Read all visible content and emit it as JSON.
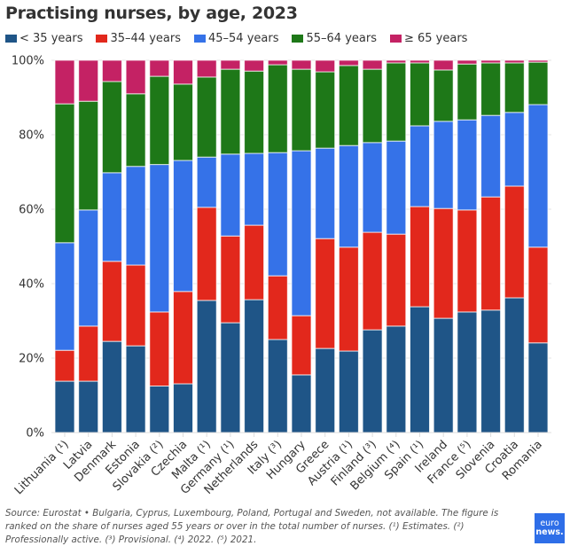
{
  "chart_data": {
    "type": "bar",
    "stacked": true,
    "percent_stacked": true,
    "title": "Practising nurses, by age, 2023",
    "xlabel": "",
    "ylabel": "",
    "ylim": [
      0,
      100
    ],
    "y_ticks": [
      0,
      20,
      40,
      60,
      80,
      100
    ],
    "y_tick_labels": [
      "0%",
      "20%",
      "40%",
      "60%",
      "80%",
      "100%"
    ],
    "grid": true,
    "legend_position": "top-left",
    "categories": [
      "Lithuania (¹)",
      "Latvia",
      "Denmark",
      "Estonia",
      "Slovakia (²)",
      "Czechia",
      "Malta (¹)",
      "Germany (¹)",
      "Netherlands",
      "Italy (³)",
      "Hungary",
      "Greece",
      "Austria (¹)",
      "Finland (³)",
      "Belgium (⁴)",
      "Spain (¹)",
      "Ireland",
      "France (⁵)",
      "Slovenia",
      "Croatia",
      "Romania"
    ],
    "series": [
      {
        "name": "< 35 years",
        "color": "#1f5587",
        "values": [
          13.8,
          13.8,
          24.5,
          23.3,
          12.5,
          13.1,
          35.5,
          29.5,
          35.7,
          25.0,
          15.5,
          22.6,
          21.9,
          27.6,
          28.6,
          33.8,
          30.7,
          32.4,
          32.9,
          36.2,
          24.1
        ]
      },
      {
        "name": "35–44 years",
        "color": "#e2281c",
        "values": [
          8.3,
          14.8,
          21.5,
          21.7,
          19.9,
          24.8,
          25.0,
          23.3,
          20.0,
          17.1,
          15.9,
          29.5,
          27.9,
          26.2,
          24.7,
          26.9,
          29.5,
          27.4,
          30.4,
          30.0,
          25.7
        ]
      },
      {
        "name": "45–54 years",
        "color": "#3572e8",
        "values": [
          28.9,
          31.2,
          23.8,
          26.5,
          39.6,
          35.2,
          13.5,
          22.0,
          19.3,
          33.1,
          44.3,
          24.3,
          27.3,
          24.1,
          25.0,
          21.7,
          23.4,
          24.2,
          21.9,
          19.8,
          38.3
        ]
      },
      {
        "name": "55–64 years",
        "color": "#1e7818",
        "values": [
          37.3,
          29.2,
          24.5,
          19.5,
          23.7,
          20.5,
          21.5,
          22.8,
          22.1,
          23.6,
          21.9,
          20.5,
          21.5,
          19.7,
          21.0,
          16.9,
          13.8,
          15.0,
          14.1,
          13.3,
          11.4
        ]
      },
      {
        "name": "≥ 65 years",
        "color": "#c42264",
        "values": [
          11.7,
          11.0,
          5.7,
          9.0,
          4.3,
          6.4,
          4.5,
          2.4,
          2.9,
          1.2,
          2.4,
          3.1,
          1.4,
          2.4,
          0.7,
          0.7,
          2.6,
          1.0,
          0.7,
          0.7,
          0.5
        ]
      }
    ],
    "source_note": "Source: Eurostat • Bulgaria, Cyprus, Luxembourg, Poland, Portugal and Sweden, not available. The figure is ranked on the share of nurses aged 55 years or over in the total number of nurses. (¹) Estimates. (²) Professionally active. (³) Provisional. (⁴) 2022. (⁵) 2021."
  },
  "header": {
    "title": "Practising nurses, by age, 2023"
  },
  "legend": {
    "items": [
      {
        "label": "< 35 years",
        "color": "#1f5587"
      },
      {
        "label": "35–44 years",
        "color": "#e2281c"
      },
      {
        "label": "45–54 years",
        "color": "#3572e8"
      },
      {
        "label": "55–64 years",
        "color": "#1e7818"
      },
      {
        "label": "≥ 65 years",
        "color": "#c42264"
      }
    ]
  },
  "footer": {
    "note": "Source: Eurostat • Bulgaria, Cyprus, Luxembourg, Poland, Portugal and Sweden, not available. The figure is ranked on the share of nurses aged 55 years or over in the total number of nurses. (¹) Estimates. (²) Professionally active. (³) Provisional. (⁴) 2022. (⁵) 2021.",
    "logo_line1": "euro",
    "logo_line2": "news."
  }
}
